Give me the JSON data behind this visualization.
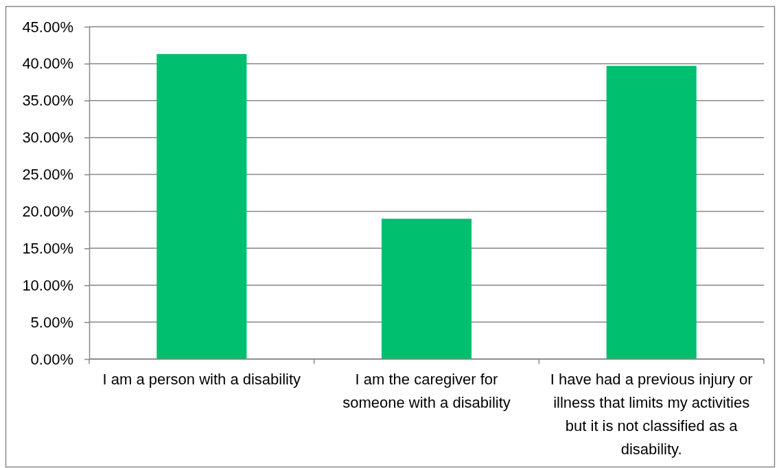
{
  "chart_data": {
    "type": "bar",
    "categories": [
      "I am a person with a disability",
      "I am the caregiver for someone with a disability",
      "I have had a previous injury or illness that limits my activities but it is not classified as a disability."
    ],
    "values": [
      41.3,
      19.0,
      39.7
    ],
    "color": "#00bf6f",
    "ylim": [
      0,
      45
    ],
    "yticks": [
      {
        "value": 0,
        "label": "0.00%"
      },
      {
        "value": 5,
        "label": "5.00%"
      },
      {
        "value": 10,
        "label": "10.00%"
      },
      {
        "value": 15,
        "label": "15.00%"
      },
      {
        "value": 20,
        "label": "20.00%"
      },
      {
        "value": 25,
        "label": "25.00%"
      },
      {
        "value": 30,
        "label": "30.00%"
      },
      {
        "value": 35,
        "label": "35.00%"
      },
      {
        "value": 40,
        "label": "40.00%"
      },
      {
        "value": 45,
        "label": "45.00%"
      }
    ],
    "grid": "y"
  }
}
